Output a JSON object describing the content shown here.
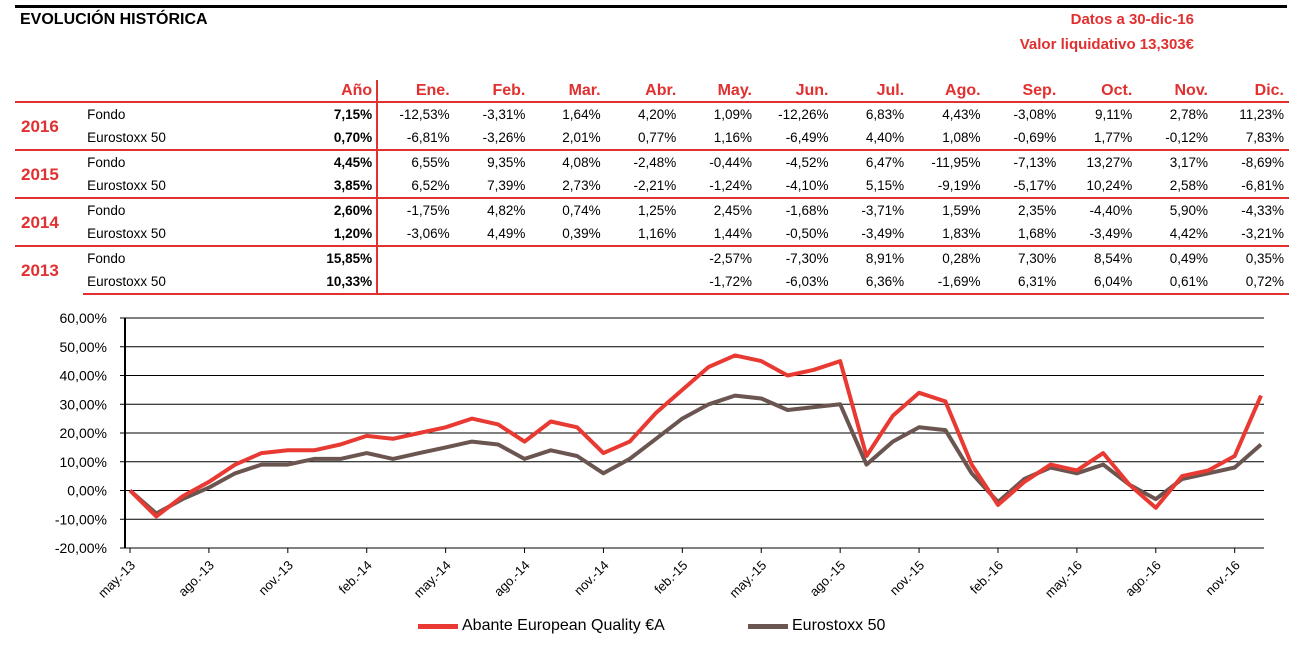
{
  "header": {
    "title": "EVOLUCIÓN HISTÓRICA",
    "date_label": "Datos a 30-dic-16",
    "nav_label": "Valor liquidativo 13,303€"
  },
  "table": {
    "columns": [
      "Año",
      "Ene.",
      "Feb.",
      "Mar.",
      "Abr.",
      "May.",
      "Jun.",
      "Jul.",
      "Ago.",
      "Sep.",
      "Oct.",
      "Nov.",
      "Dic."
    ],
    "groups": [
      {
        "year": "2016",
        "rows": [
          {
            "name": "Fondo",
            "annual": "7,15%",
            "months": [
              "-12,53%",
              "-3,31%",
              "1,64%",
              "4,20%",
              "1,09%",
              "-12,26%",
              "6,83%",
              "4,43%",
              "-3,08%",
              "9,11%",
              "2,78%",
              "11,23%"
            ]
          },
          {
            "name": "Eurostoxx 50",
            "annual": "0,70%",
            "months": [
              "-6,81%",
              "-3,26%",
              "2,01%",
              "0,77%",
              "1,16%",
              "-6,49%",
              "4,40%",
              "1,08%",
              "-0,69%",
              "1,77%",
              "-0,12%",
              "7,83%"
            ]
          }
        ]
      },
      {
        "year": "2015",
        "rows": [
          {
            "name": "Fondo",
            "annual": "4,45%",
            "months": [
              "6,55%",
              "9,35%",
              "4,08%",
              "-2,48%",
              "-0,44%",
              "-4,52%",
              "6,47%",
              "-11,95%",
              "-7,13%",
              "13,27%",
              "3,17%",
              "-8,69%"
            ]
          },
          {
            "name": "Eurostoxx 50",
            "annual": "3,85%",
            "months": [
              "6,52%",
              "7,39%",
              "2,73%",
              "-2,21%",
              "-1,24%",
              "-4,10%",
              "5,15%",
              "-9,19%",
              "-5,17%",
              "10,24%",
              "2,58%",
              "-6,81%"
            ]
          }
        ]
      },
      {
        "year": "2014",
        "rows": [
          {
            "name": "Fondo",
            "annual": "2,60%",
            "months": [
              "-1,75%",
              "4,82%",
              "0,74%",
              "1,25%",
              "2,45%",
              "-1,68%",
              "-3,71%",
              "1,59%",
              "2,35%",
              "-4,40%",
              "5,90%",
              "-4,33%"
            ]
          },
          {
            "name": "Eurostoxx 50",
            "annual": "1,20%",
            "months": [
              "-3,06%",
              "4,49%",
              "0,39%",
              "1,16%",
              "1,44%",
              "-0,50%",
              "-3,49%",
              "1,83%",
              "1,68%",
              "-3,49%",
              "4,42%",
              "-3,21%"
            ]
          }
        ]
      },
      {
        "year": "2013",
        "rows": [
          {
            "name": "Fondo",
            "annual": "15,85%",
            "months": [
              "",
              "",
              "",
              "",
              "-2,57%",
              "-7,30%",
              "8,91%",
              "0,28%",
              "7,30%",
              "8,54%",
              "0,49%",
              "0,35%"
            ]
          },
          {
            "name": "Eurostoxx 50",
            "annual": "10,33%",
            "months": [
              "",
              "",
              "",
              "",
              "-1,72%",
              "-6,03%",
              "6,36%",
              "-1,69%",
              "6,31%",
              "6,04%",
              "0,61%",
              "0,72%"
            ]
          }
        ]
      }
    ]
  },
  "chart_data": {
    "type": "line",
    "title": "",
    "xlabel": "",
    "ylabel": "",
    "ylim": [
      -20,
      60
    ],
    "yticks": [
      "-20,00%",
      "-10,00%",
      "0,00%",
      "10,00%",
      "20,00%",
      "30,00%",
      "40,00%",
      "50,00%",
      "60,00%"
    ],
    "ytick_values": [
      -20,
      -10,
      0,
      10,
      20,
      30,
      40,
      50,
      60
    ],
    "xticks": [
      "may.-13",
      "ago.-13",
      "nov.-13",
      "feb.-14",
      "may.-14",
      "ago.-14",
      "nov.-14",
      "feb.-15",
      "may.-15",
      "ago.-15",
      "nov.-15",
      "feb.-16",
      "may.-16",
      "ago.-16",
      "nov.-16"
    ],
    "x": [
      "may.-13",
      "jun.-13",
      "jul.-13",
      "ago.-13",
      "sep.-13",
      "oct.-13",
      "nov.-13",
      "dic.-13",
      "ene.-14",
      "feb.-14",
      "mar.-14",
      "abr.-14",
      "may.-14",
      "jun.-14",
      "jul.-14",
      "ago.-14",
      "sep.-14",
      "oct.-14",
      "nov.-14",
      "dic.-14",
      "ene.-15",
      "feb.-15",
      "mar.-15",
      "abr.-15",
      "may.-15",
      "jun.-15",
      "jul.-15",
      "ago.-15",
      "sep.-15",
      "oct.-15",
      "nov.-15",
      "dic.-15",
      "ene.-16",
      "feb.-16",
      "mar.-16",
      "abr.-16",
      "may.-16",
      "jun.-16",
      "jul.-16",
      "ago.-16",
      "sep.-16",
      "oct.-16",
      "nov.-16",
      "dic.-16"
    ],
    "series": [
      {
        "name": "Abante European Quality €A",
        "color": "#e83a32",
        "values": [
          0,
          -9,
          -2,
          3,
          9,
          13,
          14,
          14,
          16,
          19,
          18,
          20,
          22,
          25,
          23,
          17,
          24,
          22,
          13,
          17,
          27,
          35,
          43,
          47,
          45,
          40,
          42,
          45,
          12,
          26,
          34,
          31,
          9,
          -5,
          3,
          9,
          7,
          13,
          2,
          -6,
          5,
          7,
          12,
          33
        ]
      },
      {
        "name": "Eurostoxx 50",
        "color": "#6b5550",
        "values": [
          0,
          -8,
          -3,
          1,
          6,
          9,
          9,
          11,
          11,
          13,
          11,
          13,
          15,
          17,
          16,
          11,
          14,
          12,
          6,
          11,
          18,
          25,
          30,
          33,
          32,
          28,
          29,
          30,
          9,
          17,
          22,
          21,
          6,
          -4,
          4,
          8,
          6,
          9,
          2,
          -3,
          4,
          6,
          8,
          16
        ]
      }
    ],
    "grid": true,
    "legend": "bottom"
  }
}
